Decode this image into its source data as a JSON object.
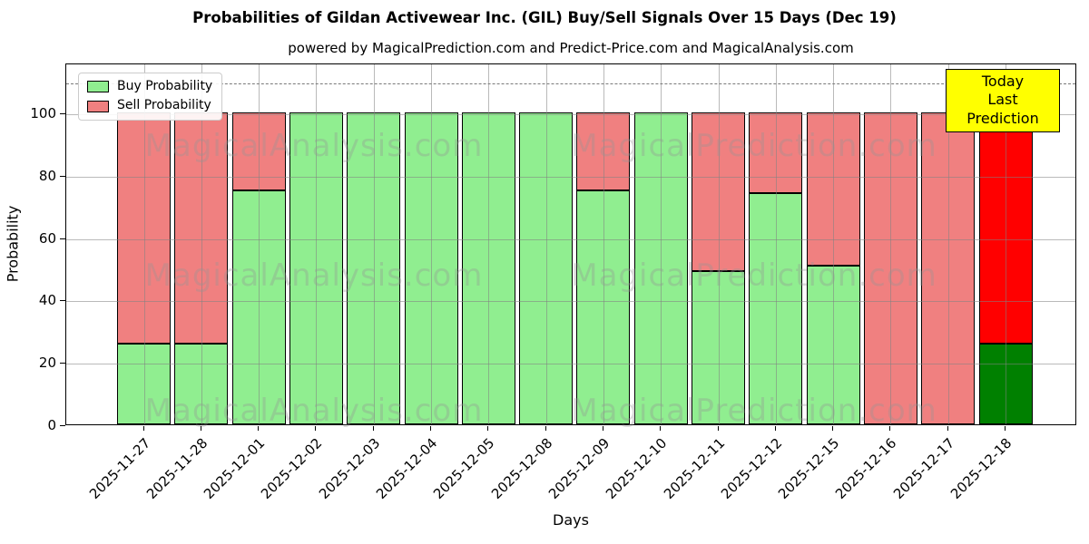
{
  "header": {
    "title": "Probabilities of Gildan Activewear Inc. (GIL) Buy/Sell Signals Over 15 Days (Dec 19)",
    "subtitle": "powered by MagicalPrediction.com and Predict-Price.com and MagicalAnalysis.com"
  },
  "chart_data": {
    "type": "bar",
    "stacked": true,
    "title": "Probabilities of Gildan Activewear Inc. (GIL) Buy/Sell Signals Over 15 Days (Dec 19)",
    "xlabel": "Days",
    "ylabel": "Probability",
    "categories": [
      "2025-11-27",
      "2025-11-28",
      "2025-12-01",
      "2025-12-02",
      "2025-12-03",
      "2025-12-04",
      "2025-12-05",
      "2025-12-08",
      "2025-12-09",
      "2025-12-10",
      "2025-12-11",
      "2025-12-12",
      "2025-12-15",
      "2025-12-16",
      "2025-12-17",
      "2025-12-18"
    ],
    "series": [
      {
        "name": "Buy Probability",
        "color": "#90ee90",
        "values": [
          26,
          26,
          75,
          100,
          100,
          100,
          100,
          100,
          75,
          100,
          49,
          74,
          51,
          0,
          0,
          26
        ]
      },
      {
        "name": "Sell Probability",
        "color": "#f08080",
        "values": [
          74,
          74,
          25,
          0,
          0,
          0,
          0,
          0,
          25,
          0,
          51,
          26,
          49,
          100,
          100,
          74
        ]
      }
    ],
    "today_bar": {
      "category": "2025-12-18",
      "index": 15,
      "buy_color": "#008000",
      "sell_color": "#ff0000"
    },
    "yticks": [
      0,
      20,
      40,
      60,
      80,
      100
    ],
    "ylim": [
      0,
      116
    ],
    "dashed_line_y": 110,
    "grid": true,
    "legend_position": "upper-left"
  },
  "legend": {
    "items": [
      {
        "label": "Buy Probability",
        "color": "#90ee90"
      },
      {
        "label": "Sell Probability",
        "color": "#f08080"
      }
    ]
  },
  "annotation": {
    "line1": "Today",
    "line2": "Last Prediction",
    "bg": "#ffff00"
  },
  "watermarks": {
    "left": "MagicalAnalysis.com",
    "right": "MagicalPrediction.com"
  },
  "colors": {
    "buy": "#90ee90",
    "sell": "#f08080",
    "today_buy": "#008000",
    "today_sell": "#ff0000",
    "annotation_bg": "#ffff00",
    "bar_edge": "#000000"
  }
}
